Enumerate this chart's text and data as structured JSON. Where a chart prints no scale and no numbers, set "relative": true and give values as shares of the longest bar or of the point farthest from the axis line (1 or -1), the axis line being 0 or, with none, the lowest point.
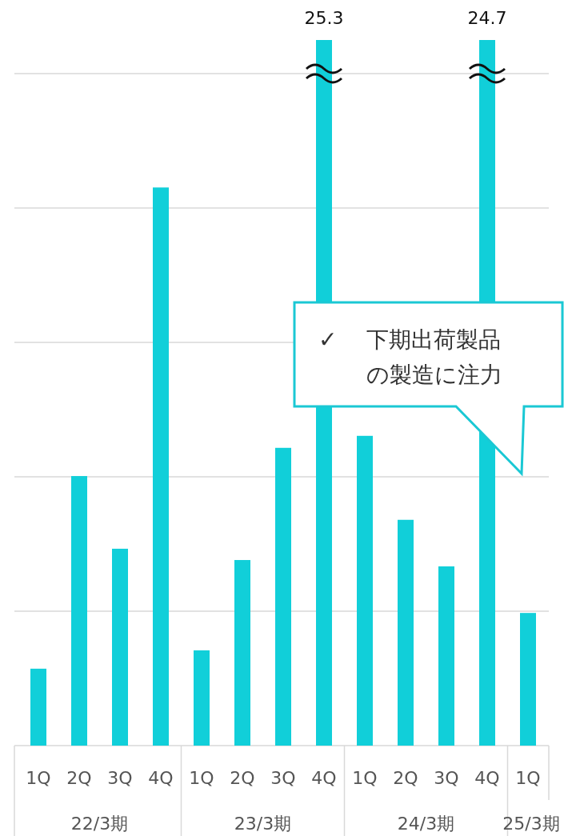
{
  "chart_data": {
    "type": "bar",
    "relative": true,
    "categories": [
      "1Q",
      "2Q",
      "3Q",
      "4Q",
      "1Q",
      "2Q",
      "3Q",
      "4Q",
      "1Q",
      "2Q",
      "3Q",
      "4Q",
      "1Q"
    ],
    "values": [
      0.109,
      0.382,
      0.279,
      0.791,
      0.135,
      0.263,
      0.422,
      1,
      0.439,
      0.32,
      0.254,
      1,
      0.188
    ],
    "color": "#11cfd9",
    "grid": true,
    "annotations": [
      "25.3",
      "24.7",
      "22/3期",
      "23/3期",
      "24/3期",
      "25/3期",
      "✓ 下期出荷製品の製造に注力"
    ]
  }
}
